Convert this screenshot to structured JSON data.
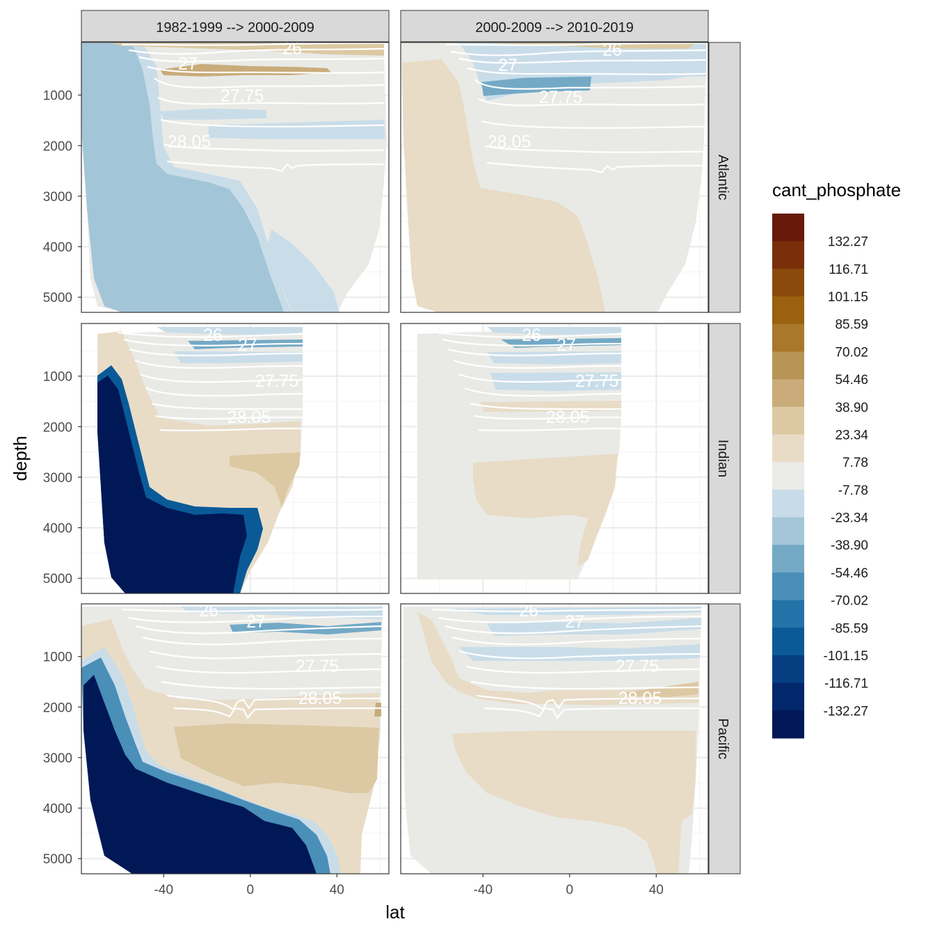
{
  "chart_data": {
    "type": "heatmap",
    "subtype": "faceted filled-contour ocean sections",
    "x_var": "lat",
    "y_var": "depth",
    "fill_var": "cant_phosphate",
    "xlabel": "lat",
    "ylabel": "depth",
    "x_range": [
      -78,
      64
    ],
    "y_range": [
      5300,
      0
    ],
    "y_reversed": true,
    "x_ticks": [
      -40,
      0,
      40
    ],
    "x_tick_labels": [
      "-40",
      "0",
      "40"
    ],
    "y_ticks": [
      1000,
      2000,
      3000,
      4000,
      5000
    ],
    "y_tick_labels": [
      "1000",
      "2000",
      "3000",
      "4000",
      "5000"
    ],
    "columns": [
      "1982-1999 --> 2000-2009",
      "2000-2009 --> 2010-2019"
    ],
    "rows": [
      "Atlantic",
      "Indian",
      "Pacific"
    ],
    "legend": {
      "title": "cant_phosphate",
      "placement": "right",
      "breaks": [
        "132.27",
        "116.71",
        "101.15",
        "85.59",
        "70.02",
        "54.46",
        "38.90",
        "23.34",
        "7.78",
        "-7.78",
        "-23.34",
        "-38.90",
        "-54.46",
        "-70.02",
        "-85.59",
        "-101.15",
        "-116.71",
        "-132.27"
      ],
      "colors": [
        "#67190a",
        "#7a2f0b",
        "#8a4a0d",
        "#9a610f",
        "#a9782a",
        "#b89556",
        "#c9ac7a",
        "#dcc9a3",
        "#e8dcc7",
        "#eaebe7",
        "#c8dbe8",
        "#a4c6d8",
        "#74a9c6",
        "#4a8fb8",
        "#2473a8",
        "#0a5a98",
        "#053f82",
        "#02276a",
        "#011857"
      ]
    },
    "isopycnals": [
      26,
      26.5,
      27,
      27.25,
      27.5,
      27.75,
      27.9,
      28.05,
      28.15
    ],
    "isopycnal_labels": [
      "26",
      "27",
      "27.75",
      "28.05"
    ],
    "panels": [
      {
        "ocean": "Atlantic",
        "period": "1982-1999 --> 2000-2009",
        "lat_extent": [
          -78,
          62
        ],
        "max_depth": 5300,
        "dominant_fill": "-23.34 to -38.90 south of 20N at depth; -7.78 to 7.78 in the north; positive band near 500 m"
      },
      {
        "ocean": "Atlantic",
        "period": "2000-2009 --> 2010-2019",
        "lat_extent": [
          -78,
          62
        ],
        "max_depth": 5300,
        "dominant_fill": "7.78 to 23.34 in the south; -7.78 to 7.78 in the north; negative band near 1000 m"
      },
      {
        "ocean": "Indian",
        "period": "1982-1999 --> 2000-2009",
        "lat_extent": [
          -72,
          24
        ],
        "max_depth": 5300,
        "dominant_fill": "below -132.27 in the deep south; 7.78 to 38.90 mid-depth; negative bands in the upper 1000 m"
      },
      {
        "ocean": "Indian",
        "period": "2000-2009 --> 2010-2019",
        "lat_extent": [
          -70,
          24
        ],
        "max_depth": 5300,
        "dominant_fill": "-7.78 to 7.78 mostly; 7.78 to 23.34 at 2500-4000 m in the north"
      },
      {
        "ocean": "Pacific",
        "period": "1982-1999 --> 2000-2009",
        "lat_extent": [
          -78,
          62
        ],
        "max_depth": 5300,
        "dominant_fill": "below -132.27 in the deep south; 23.34 to 38.90 mid-depth in the north"
      },
      {
        "ocean": "Pacific",
        "period": "2000-2009 --> 2010-2019",
        "lat_extent": [
          -78,
          60
        ],
        "max_depth": 5300,
        "dominant_fill": "-7.78 to 7.78 mostly; 7.78 to 23.34 below 2500 m north of 40S"
      }
    ]
  }
}
